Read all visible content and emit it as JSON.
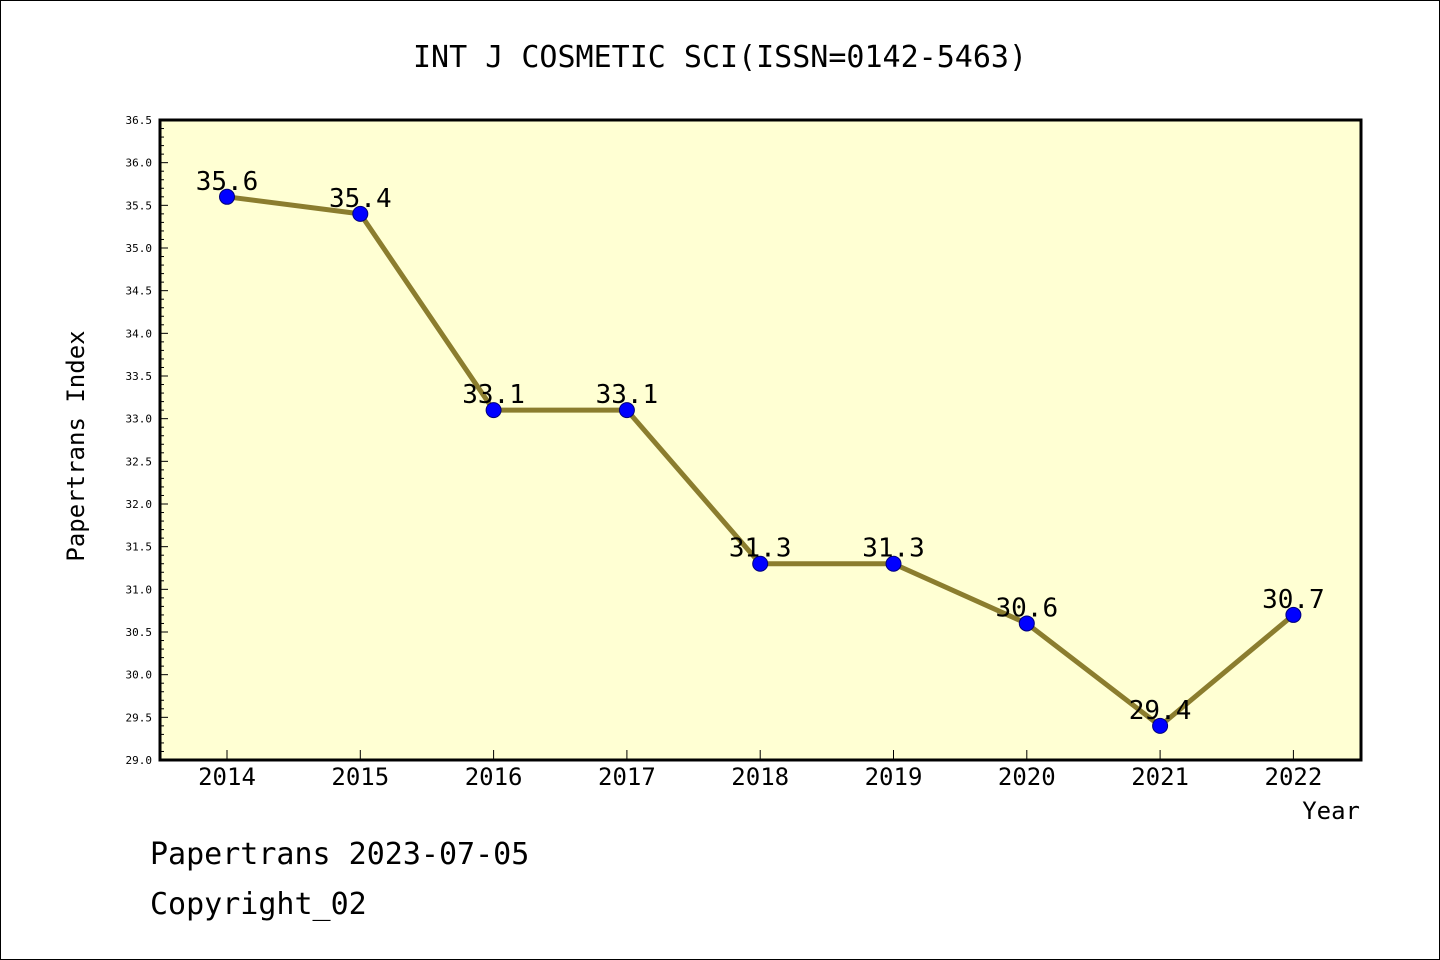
{
  "chart_data": {
    "type": "line",
    "title": "INT J COSMETIC SCI(ISSN=0142-5463)",
    "xlabel": "Year",
    "ylabel": "Papertrans Index",
    "categories": [
      "2014",
      "2015",
      "2016",
      "2017",
      "2018",
      "2019",
      "2020",
      "2021",
      "2022"
    ],
    "series": [
      {
        "values": [
          35.6,
          35.4,
          33.1,
          33.1,
          31.3,
          31.3,
          30.6,
          29.4,
          30.7
        ],
        "labels": [
          "35.6",
          "35.4",
          "33.1",
          "33.1",
          "31.3",
          "31.3",
          "30.6",
          "29.4",
          "30.7"
        ],
        "line_color": "#8b7d2e",
        "marker_color": "#0000ff"
      }
    ],
    "ylim": [
      29.0,
      36.5
    ],
    "yticks": [
      "29.0",
      "29.5",
      "30.0",
      "30.5",
      "31.0",
      "31.5",
      "32.0",
      "32.5",
      "33.0",
      "33.5",
      "34.0",
      "34.5",
      "35.0",
      "35.5",
      "36.0",
      "36.5"
    ],
    "grid": false,
    "plot_background": "#ffffd3"
  },
  "footer": {
    "line1": "Papertrans 2023-07-05",
    "line2": "Copyright_02"
  }
}
